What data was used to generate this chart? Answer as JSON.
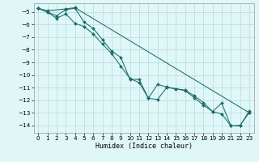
{
  "xlabel": "Humidex (Indice chaleur)",
  "background_color": "#e0f7f7",
  "grid_color": "#b8d8d8",
  "line_color": "#1a6b6b",
  "xlim": [
    -0.5,
    23.5
  ],
  "ylim": [
    -14.6,
    -4.3
  ],
  "xticks": [
    0,
    1,
    2,
    3,
    4,
    5,
    6,
    7,
    8,
    9,
    10,
    11,
    12,
    13,
    14,
    15,
    16,
    17,
    18,
    19,
    20,
    21,
    22,
    23
  ],
  "yticks": [
    -5,
    -6,
    -7,
    -8,
    -9,
    -10,
    -11,
    -12,
    -13,
    -14
  ],
  "line1_x": [
    0,
    1,
    2,
    3,
    4,
    5,
    6,
    7,
    8,
    9,
    10,
    11,
    12,
    13,
    14,
    15,
    16,
    17,
    18,
    19,
    20,
    21,
    22,
    23
  ],
  "line1_y": [
    -4.7,
    -5.0,
    -5.3,
    -4.8,
    -4.7,
    -5.8,
    -6.3,
    -7.2,
    -8.1,
    -8.6,
    -10.35,
    -10.35,
    -11.85,
    -10.75,
    -10.95,
    -11.1,
    -11.2,
    -11.65,
    -12.2,
    -12.9,
    -13.1,
    -14.05,
    -14.05,
    -12.85
  ],
  "line2_x": [
    0,
    1,
    2,
    3,
    4,
    5,
    6,
    7,
    8,
    9,
    10,
    11,
    12,
    13,
    14,
    15,
    16,
    17,
    18,
    19,
    20,
    21,
    22,
    23
  ],
  "line2_y": [
    -4.7,
    -5.0,
    -5.5,
    -5.15,
    -5.9,
    -6.15,
    -6.75,
    -7.55,
    -8.3,
    -9.3,
    -10.3,
    -10.6,
    -11.85,
    -11.95,
    -11.0,
    -11.1,
    -11.25,
    -11.8,
    -12.4,
    -12.9,
    -12.25,
    -14.05,
    -14.0,
    -13.0
  ],
  "line3_x": [
    0,
    1,
    3,
    4,
    23
  ],
  "line3_y": [
    -4.7,
    -4.9,
    -4.75,
    -4.65,
    -13.0
  ]
}
